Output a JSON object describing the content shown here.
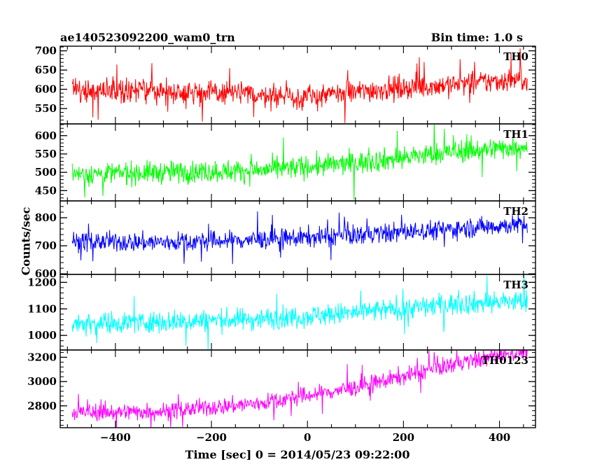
{
  "header": {
    "left": "ae140523092200_wam0_trn",
    "right": "Bin time: 1.0 s"
  },
  "ylabel": "Counts/sec",
  "xlabel": "Time [sec] 0 = 2014/05/23 09:22:00",
  "chart_data": {
    "type": "line",
    "xlim": [
      -515,
      475
    ],
    "xticks": [
      -400,
      -200,
      0,
      200,
      400
    ],
    "x_tick_labels": [
      "−400",
      "−200",
      "0",
      "200",
      "400"
    ],
    "x_range_data": [
      -490,
      458
    ],
    "bin": 1.0,
    "series": [
      {
        "name": "TH0",
        "color": "#ff0000",
        "ylim": [
          510,
          712
        ],
        "yticks": [
          550,
          600,
          650,
          700
        ],
        "trend": [
          [
            -490,
            598
          ],
          [
            -300,
            596
          ],
          [
            -100,
            586
          ],
          [
            0,
            578
          ],
          [
            150,
            600
          ],
          [
            300,
            612
          ],
          [
            458,
            628
          ]
        ],
        "noise": 28
      },
      {
        "name": "TH1",
        "color": "#00ff00",
        "ylim": [
          422,
          632
        ],
        "yticks": [
          450,
          500,
          550,
          600
        ],
        "trend": [
          [
            -490,
            495
          ],
          [
            -300,
            500
          ],
          [
            -100,
            505
          ],
          [
            100,
            525
          ],
          [
            300,
            555
          ],
          [
            458,
            572
          ]
        ],
        "noise": 28
      },
      {
        "name": "TH2",
        "color": "#0000ff",
        "ylim": [
          598,
          860
        ],
        "yticks": [
          600,
          700,
          800
        ],
        "trend": [
          [
            -490,
            715
          ],
          [
            -300,
            712
          ],
          [
            -100,
            722
          ],
          [
            100,
            738
          ],
          [
            300,
            760
          ],
          [
            458,
            778
          ]
        ],
        "noise": 32
      },
      {
        "name": "TH3",
        "color": "#00ffff",
        "ylim": [
          945,
          1230
        ],
        "yticks": [
          1000,
          1100,
          1200
        ],
        "trend": [
          [
            -490,
            1045
          ],
          [
            -300,
            1052
          ],
          [
            -100,
            1062
          ],
          [
            100,
            1085
          ],
          [
            300,
            1118
          ],
          [
            458,
            1130
          ]
        ],
        "noise": 38
      },
      {
        "name": "TH0123",
        "color": "#ff00ff",
        "ylim": [
          2620,
          3260
        ],
        "yticks": [
          2800,
          3000,
          3200
        ],
        "trend": [
          [
            -490,
            2745
          ],
          [
            -300,
            2755
          ],
          [
            -100,
            2820
          ],
          [
            100,
            2950
          ],
          [
            300,
            3140
          ],
          [
            458,
            3260
          ]
        ],
        "noise": 65
      }
    ]
  }
}
